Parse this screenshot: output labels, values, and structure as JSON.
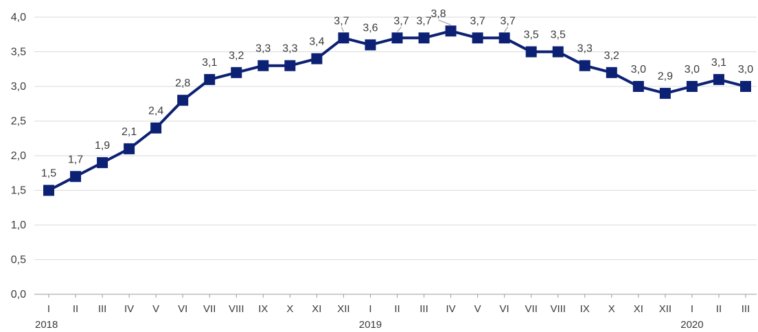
{
  "chart_data": {
    "type": "line",
    "categories": [
      "I",
      "II",
      "III",
      "IV",
      "V",
      "VI",
      "VII",
      "VIII",
      "IX",
      "X",
      "XI",
      "XII",
      "I",
      "II",
      "III",
      "IV",
      "V",
      "VI",
      "VII",
      "VIII",
      "IX",
      "X",
      "XI",
      "XII",
      "I",
      "II",
      "III"
    ],
    "years": [
      {
        "label": "2018",
        "index": 0
      },
      {
        "label": "2019",
        "index": 12
      },
      {
        "label": "2020",
        "index": 24
      }
    ],
    "series": [
      {
        "values": [
          1.5,
          1.7,
          1.9,
          2.1,
          2.4,
          2.8,
          3.1,
          3.2,
          3.3,
          3.3,
          3.4,
          3.7,
          3.6,
          3.7,
          3.7,
          3.8,
          3.7,
          3.7,
          3.5,
          3.5,
          3.3,
          3.2,
          3.0,
          2.9,
          3.0,
          3.1,
          3.0
        ],
        "labels": [
          "1,5",
          "1,7",
          "1,9",
          "2,1",
          "2,4",
          "2,8",
          "3,1",
          "3,2",
          "3,3",
          "3,3",
          "3,4",
          "3,7",
          "3,6",
          "3,7",
          "3,7",
          "3,8",
          "3,7",
          "3,7",
          "3,5",
          "3,5",
          "3,3",
          "3,2",
          "3,0",
          "2,9",
          "3,0",
          "3,1",
          "3,0"
        ],
        "color": "#0d2174"
      }
    ],
    "yticks": [
      "0,0",
      "0,5",
      "1,0",
      "1,5",
      "2,0",
      "2,5",
      "3,0",
      "3,5",
      "4,0"
    ],
    "ylim": [
      0,
      4
    ],
    "grid": true,
    "title": "",
    "xlabel": "",
    "ylabel": ""
  }
}
